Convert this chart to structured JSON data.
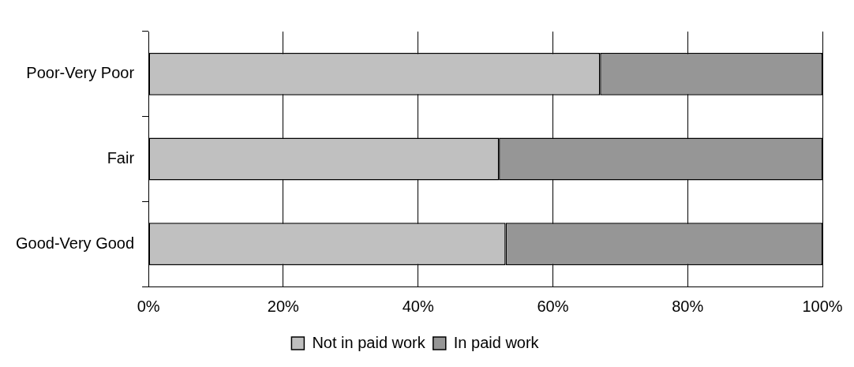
{
  "chart_data": {
    "type": "bar",
    "orientation": "horizontal",
    "stacked": true,
    "categories": [
      "Poor-Very Poor",
      "Fair",
      "Good-Very Good"
    ],
    "series": [
      {
        "name": "Not in paid work",
        "color": "#c0c0c0",
        "values": [
          67,
          52,
          53
        ]
      },
      {
        "name": "In paid work",
        "color": "#969696",
        "values": [
          33,
          48,
          47
        ]
      }
    ],
    "xlim": [
      0,
      100
    ],
    "xticks": [
      {
        "value": 0,
        "label": "0%"
      },
      {
        "value": 20,
        "label": "20%"
      },
      {
        "value": 40,
        "label": "40%"
      },
      {
        "value": 60,
        "label": "60%"
      },
      {
        "value": 80,
        "label": "80%"
      },
      {
        "value": 100,
        "label": "100%"
      }
    ],
    "grid": "x",
    "legend": "bottom"
  }
}
